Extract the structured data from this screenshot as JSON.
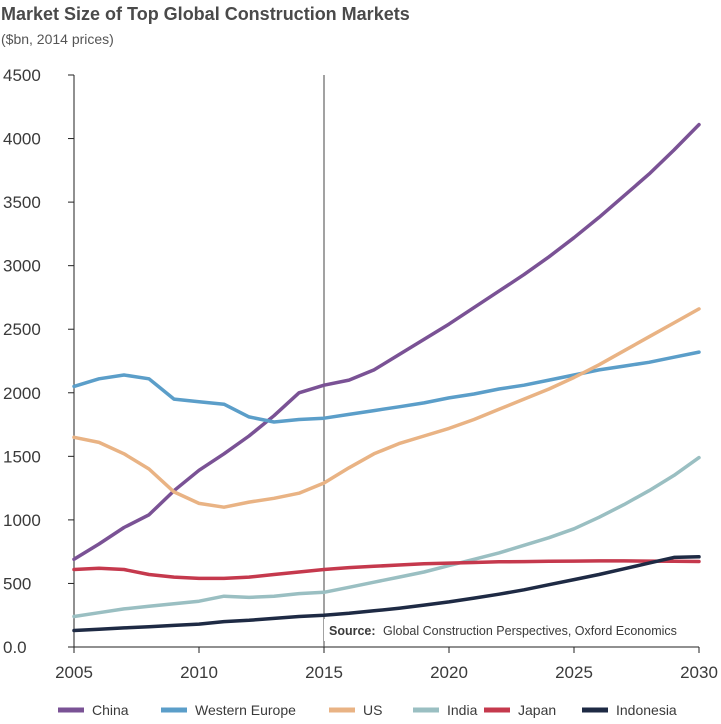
{
  "chart_data": {
    "type": "line",
    "title": "Market Size of Top Global Construction Markets",
    "subtitle": "($bn, 2014 prices)",
    "xlabel": "",
    "ylabel": "",
    "xlim": [
      2005,
      2030
    ],
    "ylim": [
      0,
      4500
    ],
    "x_ticks": [
      2005,
      2010,
      2015,
      2020,
      2025,
      2030
    ],
    "y_ticks": [
      {
        "value": 0,
        "label": "0.0"
      },
      {
        "value": 500,
        "label": "500"
      },
      {
        "value": 1000,
        "label": "1000"
      },
      {
        "value": 1500,
        "label": "1500"
      },
      {
        "value": 2000,
        "label": "2000"
      },
      {
        "value": 2500,
        "label": "2500"
      },
      {
        "value": 3000,
        "label": "3000"
      },
      {
        "value": 3500,
        "label": "3500"
      },
      {
        "value": 4000,
        "label": "4000"
      },
      {
        "value": 4500,
        "label": "4500"
      }
    ],
    "reference_line_x": 2015,
    "legend_position": "bottom",
    "source": {
      "label": "Source:",
      "text": "Global Construction Perspectives, Oxford Economics"
    },
    "series": [
      {
        "name": "China",
        "color": "#7a5295",
        "x": [
          2005,
          2006,
          2007,
          2008,
          2009,
          2010,
          2011,
          2012,
          2013,
          2014,
          2015,
          2016,
          2017,
          2018,
          2019,
          2020,
          2021,
          2022,
          2023,
          2024,
          2025,
          2026,
          2027,
          2028,
          2029,
          2030
        ],
        "values": [
          690,
          810,
          940,
          1040,
          1230,
          1390,
          1520,
          1660,
          1820,
          2000,
          2060,
          2100,
          2180,
          2300,
          2420,
          2540,
          2670,
          2800,
          2930,
          3070,
          3220,
          3380,
          3550,
          3720,
          3910,
          4110
        ]
      },
      {
        "name": "Western Europe",
        "color": "#5b9ec9",
        "x": [
          2005,
          2006,
          2007,
          2008,
          2009,
          2010,
          2011,
          2012,
          2013,
          2014,
          2015,
          2016,
          2017,
          2018,
          2019,
          2020,
          2021,
          2022,
          2023,
          2024,
          2025,
          2026,
          2027,
          2028,
          2029,
          2030
        ],
        "values": [
          2050,
          2110,
          2140,
          2110,
          1950,
          1930,
          1910,
          1810,
          1770,
          1790,
          1800,
          1830,
          1860,
          1890,
          1920,
          1960,
          1990,
          2030,
          2060,
          2100,
          2140,
          2180,
          2210,
          2240,
          2280,
          2320
        ]
      },
      {
        "name": "US",
        "color": "#e9b384",
        "x": [
          2005,
          2006,
          2007,
          2008,
          2009,
          2010,
          2011,
          2012,
          2013,
          2014,
          2015,
          2016,
          2017,
          2018,
          2019,
          2020,
          2021,
          2022,
          2023,
          2024,
          2025,
          2026,
          2027,
          2028,
          2029,
          2030
        ],
        "values": [
          1650,
          1610,
          1520,
          1400,
          1220,
          1130,
          1100,
          1140,
          1170,
          1210,
          1290,
          1410,
          1520,
          1600,
          1660,
          1720,
          1790,
          1870,
          1950,
          2030,
          2120,
          2220,
          2330,
          2440,
          2550,
          2660
        ]
      },
      {
        "name": "India",
        "color": "#9abfc2",
        "x": [
          2005,
          2006,
          2007,
          2008,
          2009,
          2010,
          2011,
          2012,
          2013,
          2014,
          2015,
          2016,
          2017,
          2018,
          2019,
          2020,
          2021,
          2022,
          2023,
          2024,
          2025,
          2026,
          2027,
          2028,
          2029,
          2030
        ],
        "values": [
          240,
          270,
          300,
          320,
          340,
          360,
          400,
          390,
          400,
          420,
          430,
          470,
          510,
          550,
          590,
          640,
          690,
          740,
          800,
          860,
          930,
          1020,
          1120,
          1230,
          1350,
          1490
        ]
      },
      {
        "name": "Japan",
        "color": "#c5394d",
        "x": [
          2005,
          2006,
          2007,
          2008,
          2009,
          2010,
          2011,
          2012,
          2013,
          2014,
          2015,
          2016,
          2017,
          2018,
          2019,
          2020,
          2021,
          2022,
          2023,
          2024,
          2025,
          2026,
          2027,
          2028,
          2029,
          2030
        ],
        "values": [
          610,
          620,
          610,
          570,
          550,
          540,
          540,
          550,
          570,
          590,
          610,
          625,
          635,
          645,
          655,
          660,
          665,
          670,
          672,
          674,
          676,
          677,
          677,
          676,
          675,
          673
        ]
      },
      {
        "name": "Indonesia",
        "color": "#1e2a44",
        "x": [
          2005,
          2006,
          2007,
          2008,
          2009,
          2010,
          2011,
          2012,
          2013,
          2014,
          2015,
          2016,
          2017,
          2018,
          2019,
          2020,
          2021,
          2022,
          2023,
          2024,
          2025,
          2026,
          2027,
          2028,
          2029,
          2030
        ],
        "values": [
          130,
          140,
          150,
          160,
          170,
          180,
          200,
          210,
          225,
          240,
          250,
          265,
          285,
          305,
          330,
          355,
          385,
          415,
          450,
          490,
          530,
          570,
          615,
          660,
          705,
          710
        ]
      }
    ]
  }
}
